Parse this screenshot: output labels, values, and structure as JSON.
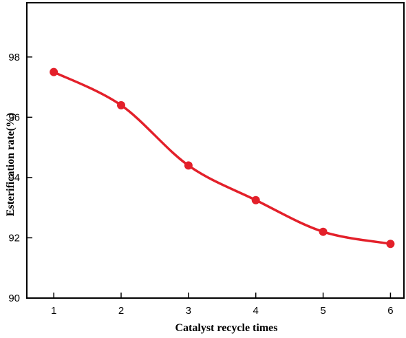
{
  "chart_data": {
    "type": "line",
    "title": "",
    "xlabel": "Catalyst recycle times",
    "ylabel": "Esterification rate(%)",
    "xlim": [
      0.6,
      6.2
    ],
    "ylim": [
      90,
      99.8
    ],
    "xticks": [
      1,
      2,
      3,
      4,
      5,
      6
    ],
    "yticks": [
      90,
      92,
      94,
      96,
      98
    ],
    "grid": false,
    "legend": "none",
    "series": [
      {
        "x": [
          1,
          2,
          3,
          4,
          5,
          6
        ],
        "y": [
          97.5,
          96.4,
          94.4,
          93.25,
          92.2,
          91.8
        ],
        "color": "#e3202a",
        "marker": "circle",
        "line": "smooth-fit"
      }
    ]
  }
}
